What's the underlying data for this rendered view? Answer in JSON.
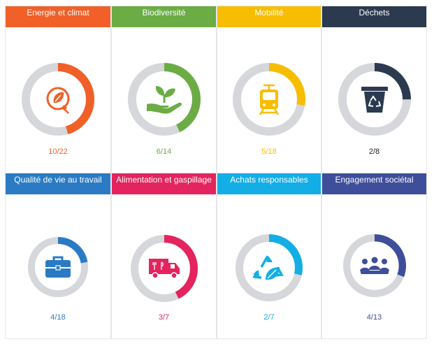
{
  "cards": [
    {
      "title": "Energie et climat",
      "color": "#f06028",
      "label": "10/22",
      "done": 10,
      "total": 22,
      "icon": "eco-energy-plug-icon"
    },
    {
      "title": "Biodiversité",
      "color": "#6bac45",
      "label": "6/14",
      "done": 6,
      "total": 14,
      "icon": "plant-in-hand-icon"
    },
    {
      "title": "Mobilité",
      "color": "#f7bd00",
      "label": "5/18",
      "done": 5,
      "total": 18,
      "icon": "tram-icon"
    },
    {
      "title": "Déchets",
      "color": "#2b3a4f",
      "label": "2/8",
      "done": 2,
      "total": 8,
      "icon": "recycling-bin-icon"
    },
    {
      "title": "Qualité de vie au travail",
      "color": "#2a7bc4",
      "label": "4/18",
      "done": 4,
      "total": 18,
      "icon": "briefcase-icon"
    },
    {
      "title": "Alimentation et gaspillage",
      "color": "#e3245e",
      "label": "3/7",
      "done": 3,
      "total": 7,
      "icon": "food-truck-icon"
    },
    {
      "title": "Achats responsables",
      "color": "#13aee6",
      "label": "2/7",
      "done": 2,
      "total": 7,
      "icon": "recycle-leaf-icon"
    },
    {
      "title": "Engagement sociétal",
      "color": "#3f4e9b",
      "label": "4/13",
      "done": 4,
      "total": 13,
      "icon": "group-meeting-icon"
    }
  ],
  "ring_track_color": "#d6d7db"
}
